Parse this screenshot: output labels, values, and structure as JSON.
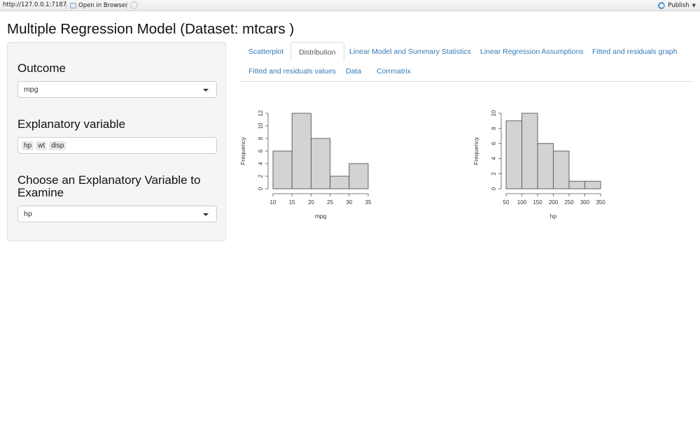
{
  "toolbar": {
    "url": "http://127.0.0.1:7187",
    "open_in_browser": "Open in Browser",
    "publish": "Publish"
  },
  "page_title": "Multiple Regression Model (Dataset: mtcars )",
  "sidebar": {
    "outcome_label": "Outcome",
    "outcome_value": "mpg",
    "explanatory_label": "Explanatory variable",
    "explanatory_values": [
      "hp",
      "wt",
      "disp"
    ],
    "examine_label_line1": "Choose an Explanatory Variable to",
    "examine_label_line2": "Examine",
    "examine_value": "hp"
  },
  "tabs": [
    {
      "label": "Scatterplot",
      "active": false
    },
    {
      "label": "Distribution",
      "active": true
    },
    {
      "label": "Linear Model and Summary Statistics",
      "active": false
    },
    {
      "label": "Linear Regression Assumptions",
      "active": false
    },
    {
      "label": "Fitted and residuals graph",
      "active": false
    },
    {
      "label": "Fitted and residuals values",
      "active": false
    },
    {
      "label": "Data",
      "active": false
    },
    {
      "label": "Corrmatrix",
      "active": false
    }
  ],
  "colors": {
    "bar_fill": "#d3d3d3",
    "link": "#337ab7"
  },
  "chart_data": [
    {
      "type": "bar",
      "chart_kind": "histogram",
      "xlabel": "mpg",
      "ylabel": "Frequency",
      "bins": [
        [
          10,
          15
        ],
        [
          15,
          20
        ],
        [
          20,
          25
        ],
        [
          25,
          30
        ],
        [
          30,
          35
        ]
      ],
      "values": [
        6,
        12,
        8,
        2,
        4
      ],
      "x_ticks": [
        10,
        15,
        20,
        25,
        30,
        35
      ],
      "y_ticks": [
        0,
        2,
        4,
        6,
        8,
        10,
        12
      ],
      "xlim": [
        10,
        35
      ],
      "ylim": [
        0,
        12
      ]
    },
    {
      "type": "bar",
      "chart_kind": "histogram",
      "xlabel": "hp",
      "ylabel": "Frequency",
      "bins": [
        [
          50,
          100
        ],
        [
          100,
          150
        ],
        [
          150,
          200
        ],
        [
          200,
          250
        ],
        [
          250,
          300
        ],
        [
          300,
          350
        ]
      ],
      "values": [
        9,
        10,
        6,
        5,
        1,
        1
      ],
      "x_ticks": [
        50,
        100,
        150,
        200,
        250,
        300,
        350
      ],
      "y_ticks": [
        0,
        2,
        4,
        6,
        8,
        10
      ],
      "xlim": [
        50,
        350
      ],
      "ylim": [
        0,
        10
      ]
    }
  ]
}
